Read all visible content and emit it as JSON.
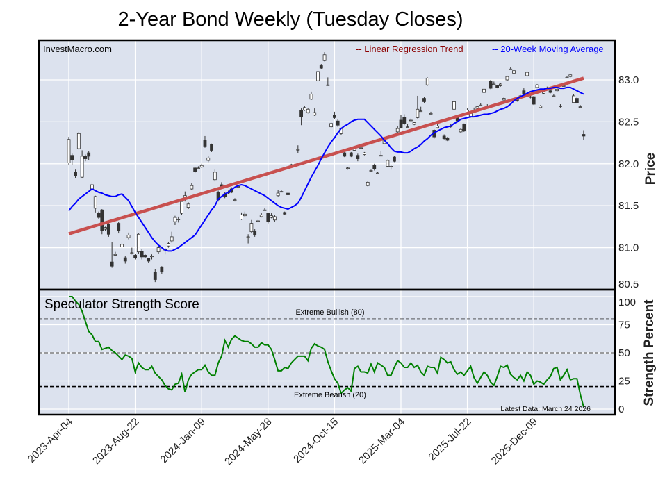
{
  "chart_data": {
    "type": "candlestick",
    "title": "2-Year Bond Weekly (Tuesday Closes)",
    "watermark": "InvestMacro.com",
    "frequency": "weekly",
    "first_date": "2023-04-04",
    "price_panel": {
      "ylabel": "Price",
      "ylim": [
        80.5,
        83.3
      ],
      "yticks": [
        "80.5",
        "81.0",
        "81.5",
        "82.0",
        "82.5",
        "83.0"
      ],
      "grid": true,
      "legend": [
        {
          "label": "-- Linear Regression Trend",
          "color": "#8b0000"
        },
        {
          "label": "-- 20-Week Moving Average",
          "color": "#0000ff"
        }
      ],
      "legend_placement": "top-right",
      "trend_color": "#c8504f",
      "ma_color": "#0000ff",
      "up_color": "#ffffff",
      "down_color": "#333333",
      "trend": {
        "start": 81.165,
        "end": 83.02
      },
      "ohlc": [
        [
          82.01,
          82.32,
          81.99,
          82.29
        ],
        [
          82.1,
          82.12,
          81.99,
          82.05
        ],
        [
          81.9,
          81.93,
          81.83,
          81.86
        ],
        [
          82.18,
          82.38,
          82.17,
          82.36
        ],
        [
          81.84,
          82.16,
          81.83,
          82.09
        ],
        [
          82.09,
          82.11,
          82.03,
          82.06
        ],
        [
          82.13,
          82.15,
          82.04,
          82.09
        ],
        [
          81.7,
          81.78,
          81.67,
          81.75
        ],
        [
          81.47,
          81.62,
          81.42,
          81.61
        ],
        [
          81.41,
          81.43,
          81.34,
          81.36
        ],
        [
          81.45,
          81.46,
          81.16,
          81.2
        ],
        [
          81.22,
          81.25,
          81.2,
          81.24
        ],
        [
          81.28,
          81.3,
          81.13,
          81.16
        ],
        [
          80.83,
          81.07,
          80.76,
          80.78
        ],
        [
          80.91,
          80.95,
          80.9,
          80.92
        ],
        [
          81.29,
          81.31,
          81.17,
          81.2
        ],
        [
          81.01,
          81.07,
          80.99,
          81.04
        ],
        [
          80.88,
          80.9,
          80.81,
          80.84
        ],
        [
          81.12,
          81.18,
          81.1,
          81.15
        ],
        [
          80.94,
          81.0,
          80.92,
          80.94
        ],
        [
          80.91,
          80.93,
          80.86,
          80.88
        ],
        [
          80.95,
          81.17,
          80.93,
          81.16
        ],
        [
          80.96,
          80.98,
          80.86,
          80.89
        ],
        [
          80.91,
          80.92,
          80.88,
          80.89
        ],
        [
          80.87,
          80.88,
          80.82,
          80.84
        ],
        [
          80.9,
          80.92,
          80.86,
          80.9
        ],
        [
          80.71,
          80.74,
          80.59,
          80.62
        ],
        [
          80.95,
          81.02,
          80.93,
          81.0
        ],
        [
          80.77,
          80.78,
          80.69,
          80.71
        ],
        [
          80.98,
          81.0,
          80.92,
          80.98
        ],
        [
          81.02,
          81.07,
          81.0,
          81.05
        ],
        [
          81.08,
          81.19,
          81.06,
          81.13
        ],
        [
          81.31,
          81.38,
          81.27,
          81.36
        ],
        [
          81.34,
          81.37,
          81.3,
          81.34
        ],
        [
          81.41,
          81.57,
          81.39,
          81.55
        ],
        [
          81.59,
          81.67,
          81.55,
          81.62
        ],
        [
          81.48,
          81.54,
          81.46,
          81.52
        ],
        [
          81.7,
          81.77,
          81.69,
          81.74
        ],
        [
          81.95,
          81.96,
          81.89,
          81.91
        ],
        [
          81.95,
          81.97,
          81.94,
          81.95
        ],
        [
          81.96,
          82.0,
          81.95,
          81.98
        ],
        [
          82.28,
          82.33,
          82.19,
          82.21
        ],
        [
          82.04,
          82.09,
          82.02,
          82.07
        ],
        [
          82.23,
          82.24,
          82.14,
          82.16
        ],
        [
          81.81,
          81.93,
          81.79,
          81.9
        ],
        [
          81.66,
          81.68,
          81.55,
          81.57
        ],
        [
          81.75,
          81.78,
          81.7,
          81.72
        ],
        [
          81.64,
          81.66,
          81.59,
          81.61
        ],
        [
          81.66,
          81.68,
          81.64,
          81.66
        ],
        [
          81.7,
          81.72,
          81.65,
          81.66
        ],
        [
          81.57,
          81.59,
          81.55,
          81.57
        ],
        [
          81.73,
          81.75,
          81.72,
          81.73
        ],
        [
          81.34,
          81.42,
          81.33,
          81.39
        ],
        [
          81.38,
          81.43,
          81.37,
          81.4
        ],
        [
          81.13,
          81.16,
          81.05,
          81.13
        ],
        [
          81.19,
          81.33,
          81.17,
          81.29
        ],
        [
          81.2,
          81.22,
          81.13,
          81.15
        ],
        [
          81.32,
          81.34,
          81.3,
          81.32
        ],
        [
          81.37,
          81.41,
          81.36,
          81.39
        ],
        [
          81.45,
          81.47,
          81.44,
          81.45
        ],
        [
          81.41,
          81.42,
          81.29,
          81.31
        ],
        [
          81.36,
          81.41,
          81.35,
          81.38
        ],
        [
          81.33,
          81.39,
          81.31,
          81.37
        ],
        [
          81.62,
          81.69,
          81.61,
          81.65
        ],
        [
          81.67,
          81.69,
          81.66,
          81.67
        ],
        [
          81.42,
          81.43,
          81.39,
          81.4
        ],
        [
          81.65,
          81.66,
          81.62,
          81.63
        ],
        [
          81.99,
          82.0,
          81.98,
          81.99
        ],
        [
          81.99,
          82.0,
          81.98,
          81.99
        ],
        [
          82.17,
          82.22,
          82.13,
          82.17
        ],
        [
          82.64,
          82.66,
          82.46,
          82.56
        ],
        [
          82.64,
          82.69,
          82.63,
          82.67
        ],
        [
          82.61,
          82.66,
          82.6,
          82.65
        ],
        [
          82.77,
          82.86,
          82.76,
          82.83
        ],
        [
          82.58,
          82.66,
          82.57,
          82.61
        ],
        [
          82.99,
          83.12,
          82.98,
          83.1
        ],
        [
          83.17,
          83.19,
          83.13,
          83.14
        ],
        [
          83.23,
          83.33,
          83.22,
          83.3
        ],
        [
          82.94,
          83.03,
          82.93,
          82.94
        ],
        [
          82.44,
          82.49,
          82.43,
          82.48
        ],
        [
          82.58,
          82.62,
          82.53,
          82.55
        ],
        [
          82.51,
          82.53,
          82.44,
          82.46
        ],
        [
          82.36,
          82.43,
          82.34,
          82.42
        ],
        [
          82.13,
          82.15,
          82.08,
          82.09
        ],
        [
          81.95,
          81.96,
          81.93,
          81.95
        ],
        [
          82.13,
          82.14,
          82.08,
          82.09
        ],
        [
          82.16,
          82.19,
          82.15,
          82.18
        ],
        [
          82.1,
          82.12,
          82.03,
          82.06
        ],
        [
          82.19,
          82.2,
          82.18,
          82.19
        ],
        [
          82.11,
          82.14,
          82.1,
          82.13
        ],
        [
          81.74,
          81.79,
          81.73,
          81.78
        ],
        [
          81.92,
          81.93,
          81.91,
          81.92
        ],
        [
          81.98,
          82.0,
          81.92,
          81.94
        ],
        [
          81.89,
          81.9,
          81.88,
          81.89
        ],
        [
          82.1,
          82.15,
          82.09,
          82.1
        ],
        [
          82.24,
          82.29,
          82.23,
          82.28
        ],
        [
          81.97,
          82.05,
          81.96,
          82.04
        ],
        [
          81.97,
          81.99,
          81.93,
          81.97
        ],
        [
          82.08,
          82.09,
          82.02,
          82.03
        ],
        [
          82.38,
          82.45,
          82.37,
          82.42
        ],
        [
          82.52,
          82.58,
          82.42,
          82.43
        ],
        [
          82.55,
          82.59,
          82.46,
          82.48
        ],
        [
          82.44,
          82.47,
          82.43,
          82.44
        ],
        [
          82.52,
          82.54,
          82.51,
          82.52
        ],
        [
          82.47,
          82.5,
          82.46,
          82.49
        ],
        [
          82.55,
          82.81,
          82.54,
          82.65
        ],
        [
          82.63,
          82.68,
          82.62,
          82.63
        ],
        [
          82.78,
          82.8,
          82.72,
          82.74
        ],
        [
          82.94,
          83.03,
          82.93,
          83.02
        ],
        [
          82.6,
          82.62,
          82.59,
          82.6
        ],
        [
          82.4,
          82.41,
          82.3,
          82.32
        ],
        [
          82.43,
          82.47,
          82.42,
          82.45
        ],
        [
          82.51,
          82.53,
          82.5,
          82.51
        ],
        [
          82.33,
          82.35,
          82.29,
          82.3
        ],
        [
          82.31,
          82.32,
          82.27,
          82.28
        ],
        [
          82.45,
          82.47,
          82.43,
          82.45
        ],
        [
          82.65,
          82.75,
          82.64,
          82.74
        ],
        [
          82.56,
          82.58,
          82.5,
          82.51
        ],
        [
          82.38,
          82.42,
          82.37,
          82.41
        ],
        [
          82.47,
          82.48,
          82.38,
          82.39
        ],
        [
          82.61,
          82.66,
          82.6,
          82.64
        ],
        [
          82.56,
          82.62,
          82.55,
          82.6
        ],
        [
          82.64,
          82.67,
          82.63,
          82.64
        ],
        [
          82.66,
          82.69,
          82.65,
          82.68
        ],
        [
          82.7,
          82.72,
          82.69,
          82.7
        ],
        [
          82.85,
          82.9,
          82.84,
          82.89
        ],
        [
          82.68,
          82.71,
          82.67,
          82.68
        ],
        [
          82.98,
          83.0,
          82.89,
          82.9
        ],
        [
          82.95,
          82.98,
          82.94,
          82.95
        ],
        [
          82.93,
          82.94,
          82.9,
          82.91
        ],
        [
          82.93,
          82.96,
          82.92,
          82.95
        ],
        [
          82.76,
          82.79,
          82.75,
          82.78
        ],
        [
          83.0,
          83.05,
          82.99,
          83.04
        ],
        [
          83.13,
          83.15,
          83.12,
          83.13
        ],
        [
          83.08,
          83.12,
          83.07,
          83.11
        ],
        [
          82.77,
          82.78,
          82.74,
          82.75
        ],
        [
          82.81,
          82.82,
          82.78,
          82.79
        ],
        [
          82.87,
          82.9,
          82.82,
          82.83
        ],
        [
          83.05,
          83.1,
          83.04,
          83.09
        ],
        [
          82.8,
          82.82,
          82.78,
          82.8
        ],
        [
          82.8,
          82.81,
          82.7,
          82.71
        ],
        [
          82.91,
          82.95,
          82.9,
          82.94
        ],
        [
          82.67,
          82.7,
          82.66,
          82.69
        ],
        [
          82.84,
          82.87,
          82.83,
          82.86
        ],
        [
          82.9,
          82.92,
          82.89,
          82.9
        ],
        [
          82.87,
          82.88,
          82.84,
          82.85
        ],
        [
          82.81,
          82.83,
          82.8,
          82.81
        ],
        [
          82.87,
          82.9,
          82.86,
          82.89
        ],
        [
          82.69,
          82.71,
          82.67,
          82.69
        ],
        [
          82.93,
          82.95,
          82.92,
          82.93
        ],
        [
          83.03,
          83.05,
          83.02,
          83.03
        ],
        [
          83.04,
          83.07,
          83.03,
          83.06
        ],
        [
          82.73,
          82.83,
          82.72,
          82.81
        ],
        [
          82.78,
          82.8,
          82.72,
          82.73
        ],
        [
          82.68,
          82.7,
          82.67,
          82.68
        ],
        [
          82.35,
          82.4,
          82.28,
          82.33
        ]
      ],
      "ma20": [
        81.44,
        81.49,
        81.53,
        81.58,
        81.61,
        81.64,
        81.67,
        81.7,
        81.68,
        81.66,
        81.65,
        81.63,
        81.62,
        81.61,
        81.61,
        81.63,
        81.64,
        81.6,
        81.56,
        81.49,
        81.42,
        81.36,
        81.3,
        81.24,
        81.18,
        81.12,
        81.07,
        81.03,
        81.0,
        80.97,
        80.96,
        80.96,
        80.98,
        81.0,
        81.03,
        81.06,
        81.09,
        81.12,
        81.15,
        81.21,
        81.27,
        81.33,
        81.39,
        81.45,
        81.5,
        81.58,
        81.61,
        81.64,
        81.66,
        81.69,
        81.72,
        81.74,
        81.75,
        81.74,
        81.72,
        81.7,
        81.68,
        81.66,
        81.64,
        81.62,
        81.59,
        81.56,
        81.53,
        81.5,
        81.48,
        81.47,
        81.46,
        81.48,
        81.5,
        81.53,
        81.6,
        81.68,
        81.76,
        81.84,
        81.91,
        81.98,
        82.06,
        82.13,
        82.2,
        82.26,
        82.31,
        82.37,
        82.42,
        82.45,
        82.47,
        82.5,
        82.52,
        82.53,
        82.53,
        82.53,
        82.49,
        82.45,
        82.41,
        82.37,
        82.33,
        82.28,
        82.24,
        82.19,
        82.15,
        82.14,
        82.14,
        82.13,
        82.13,
        82.15,
        82.18,
        82.2,
        82.23,
        82.27,
        82.3,
        82.34,
        82.37,
        82.39,
        82.41,
        82.43,
        82.44,
        82.45,
        82.48,
        82.5,
        82.53,
        82.54,
        82.55,
        82.56,
        82.56,
        82.57,
        82.58,
        82.59,
        82.59,
        82.6,
        82.61,
        82.63,
        82.65,
        82.66,
        82.68,
        82.71,
        82.75,
        82.78,
        82.8,
        82.82,
        82.84,
        82.86,
        82.87,
        82.88,
        82.89,
        82.89,
        82.9,
        82.9,
        82.91,
        82.91,
        82.9,
        82.9,
        82.91,
        82.91,
        82.89,
        82.87,
        82.85,
        82.83
      ]
    },
    "strength_panel": {
      "title": "Speculator Strength Score",
      "ylabel": "Strength Percent",
      "ylim": [
        0,
        100
      ],
      "yticks": [
        "0",
        "25",
        "50",
        "75",
        "100"
      ],
      "line_color": "#008000",
      "extreme_bullish": {
        "value": 80,
        "label": "Extreme Bullish (80)"
      },
      "extreme_bearish": {
        "value": 20,
        "label": "Extreme Bearish (20)"
      },
      "midline": 50,
      "latest_data": "Latest Data: March 24 2026",
      "values": [
        100,
        100,
        96,
        93,
        87,
        78,
        69,
        66,
        60,
        60,
        53,
        54,
        55,
        52,
        50,
        47,
        44,
        48,
        47,
        45,
        33,
        41,
        37,
        35,
        35,
        38,
        32,
        29,
        26,
        21,
        18,
        17,
        22,
        23,
        31,
        15,
        26,
        31,
        33,
        35,
        35,
        39,
        33,
        30,
        30,
        41,
        47,
        61,
        55,
        62,
        65,
        63,
        61,
        60,
        60,
        58,
        55,
        55,
        59,
        57,
        57,
        53,
        44,
        34,
        34,
        37,
        36,
        41,
        44,
        47,
        47,
        47,
        43,
        54,
        58,
        56,
        55,
        53,
        42,
        34,
        27,
        23,
        14,
        17,
        19,
        16,
        36,
        38,
        33,
        33,
        32,
        40,
        33,
        41,
        39,
        37,
        30,
        30,
        37,
        43,
        41,
        37,
        37,
        41,
        37,
        39,
        33,
        30,
        38,
        37,
        37,
        32,
        46,
        44,
        41,
        42,
        35,
        31,
        33,
        30,
        34,
        38,
        28,
        23,
        28,
        33,
        30,
        24,
        21,
        29,
        38,
        37,
        39,
        31,
        28,
        26,
        30,
        25,
        33,
        30,
        22,
        25,
        24,
        22,
        26,
        29,
        36,
        37,
        26,
        30,
        35,
        26,
        27,
        27,
        13,
        2
      ]
    },
    "xticks": [
      {
        "label": "2023-Apr-04",
        "week": 0
      },
      {
        "label": "2023-Aug-22",
        "week": 20
      },
      {
        "label": "2024-Jan-09",
        "week": 40
      },
      {
        "label": "2024-May-28",
        "week": 60
      },
      {
        "label": "2024-Oct-15",
        "week": 80
      },
      {
        "label": "2025-Mar-04",
        "week": 100
      },
      {
        "label": "2025-Jul-22",
        "week": 120
      },
      {
        "label": "2025-Dec-09",
        "week": 140
      }
    ]
  }
}
